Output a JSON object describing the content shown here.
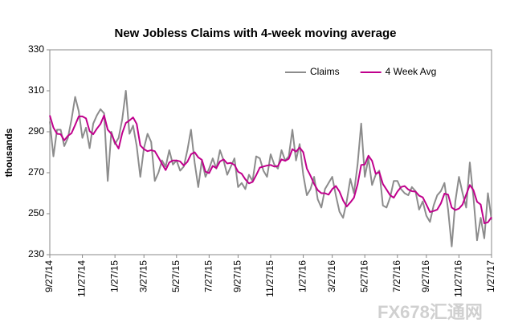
{
  "chart_data": {
    "type": "line",
    "title": "New Jobless  Claims with 4-week moving average",
    "y_label": "thousands",
    "watermark": "FX678汇通网",
    "legend": "top-right",
    "grid": false,
    "ylim": [
      230,
      330
    ],
    "yticks": [
      230,
      250,
      270,
      290,
      310,
      330
    ],
    "categories": [
      "9/27/14",
      null,
      null,
      null,
      null,
      null,
      null,
      null,
      null,
      "11/27/14",
      null,
      null,
      null,
      null,
      null,
      null,
      null,
      null,
      "1/27/15",
      null,
      null,
      null,
      null,
      null,
      null,
      null,
      "3/27/15",
      null,
      null,
      null,
      null,
      null,
      null,
      null,
      null,
      "5/27/15",
      null,
      null,
      null,
      null,
      null,
      null,
      null,
      null,
      "7/27/15",
      null,
      null,
      null,
      null,
      null,
      null,
      null,
      "9/27/15",
      null,
      null,
      null,
      null,
      null,
      null,
      null,
      null,
      "11/27/15",
      null,
      null,
      null,
      null,
      null,
      null,
      null,
      null,
      "1/27/16",
      null,
      null,
      null,
      null,
      null,
      null,
      null,
      "3/27/16",
      null,
      null,
      null,
      null,
      null,
      null,
      null,
      null,
      "5/27/16",
      null,
      null,
      null,
      null,
      null,
      null,
      null,
      null,
      "7/27/16",
      null,
      null,
      null,
      null,
      null,
      null,
      null,
      "9/27/16",
      null,
      null,
      null,
      null,
      null,
      null,
      null,
      null,
      "11/27/16",
      null,
      null,
      null,
      null,
      null,
      null,
      null,
      null,
      "1/27/17"
    ],
    "series": [
      {
        "name": "Claims",
        "color": "#8c8c8c",
        "width": 2,
        "values": [
          295,
          278,
          291,
          291,
          283,
          287,
          296,
          307,
          300,
          287,
          292,
          282,
          294,
          298,
          301,
          299,
          266,
          290,
          284,
          287,
          296,
          310,
          289,
          293,
          283,
          268,
          282,
          289,
          285,
          266,
          270,
          276,
          273,
          281,
          274,
          276,
          271,
          273,
          281,
          291,
          275,
          263,
          276,
          268,
          272,
          277,
          272,
          281,
          276,
          269,
          273,
          277,
          263,
          265,
          262,
          269,
          266,
          278,
          277,
          271,
          268,
          279,
          274,
          272,
          281,
          276,
          278,
          291,
          276,
          284,
          269,
          259,
          262,
          268,
          257,
          253,
          262,
          265,
          268,
          259,
          251,
          248,
          256,
          267,
          260,
          274,
          294,
          268,
          277,
          264,
          269,
          271,
          254,
          253,
          258,
          266,
          266,
          262,
          260,
          259,
          263,
          261,
          252,
          256,
          249,
          246,
          254,
          259,
          261,
          265,
          252,
          234,
          256,
          268,
          260,
          253,
          275,
          258,
          237,
          248,
          238,
          260,
          247
        ]
      },
      {
        "name": "4 Week Avg",
        "color": "#c0008c",
        "width": 2,
        "values": [
          298,
          292,
          289,
          288.8,
          285.8,
          288,
          289.3,
          293.3,
          297.5,
          297.5,
          296.5,
          290.3,
          288.8,
          291.5,
          293.8,
          298,
          291,
          289,
          284.8,
          281.8,
          289.3,
          294.3,
          295.5,
          297,
          293.8,
          283.3,
          281.5,
          280.5,
          281,
          280.5,
          277.5,
          274.3,
          271.3,
          275,
          276,
          276,
          275.5,
          273.5,
          275.3,
          279,
          280,
          277.5,
          276.3,
          270.5,
          269.8,
          273.3,
          272.3,
          275.5,
          276.5,
          274.5,
          274.8,
          273.8,
          270.5,
          269.5,
          266.8,
          264.8,
          265.5,
          268.8,
          272.5,
          273,
          273.5,
          273.8,
          273,
          273.3,
          276.5,
          275.8,
          276.8,
          281.5,
          280.3,
          282.3,
          280,
          272,
          268.5,
          264.5,
          261.5,
          260,
          260,
          259.3,
          262,
          263.5,
          260.8,
          256.5,
          253.5,
          255.5,
          257.8,
          264.3,
          273.8,
          274,
          278.3,
          275.8,
          269.5,
          270.3,
          264.5,
          261.8,
          259,
          257.8,
          260.8,
          263,
          263.5,
          261.8,
          261,
          260.8,
          258.8,
          258,
          254.5,
          250.8,
          251.3,
          252,
          255,
          259.8,
          259.3,
          253,
          251.8,
          252.5,
          254.5,
          259.3,
          264,
          261.5,
          255.8,
          254.5,
          245.3,
          245.8,
          248.3
        ]
      }
    ]
  }
}
